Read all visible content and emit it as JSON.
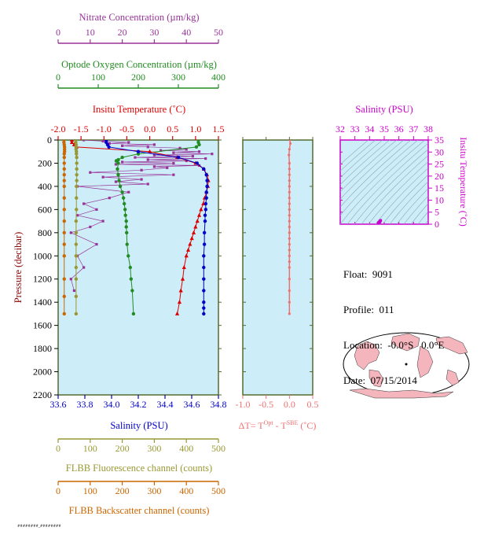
{
  "colors": {
    "nitrate": "#993399",
    "oxygen": "#228b22",
    "temperature": "#dd0000",
    "salinity": "#0000cc",
    "fluorescence": "#999933",
    "backscatter": "#cc6600",
    "delta_t": "#f07070",
    "ts_axis": "#cc00cc",
    "panel_bg": "#cdeef8",
    "frame": "#556b2f"
  },
  "info": {
    "float_label": "Float:",
    "float_value": "9091",
    "profile_label": "Profile:",
    "profile_value": "011",
    "location_label": "Location:",
    "location_value": "-0.0°S   0.0°E",
    "date_label": "Date:",
    "date_value": "07/15/2014"
  },
  "footer_tag": "########_########",
  "chart_data": [
    {
      "type": "line",
      "title": "",
      "ylabel": "Pressure (decibar)",
      "ylim": [
        2200,
        0
      ],
      "y_ticks": [
        0,
        200,
        400,
        600,
        800,
        1000,
        1200,
        1400,
        1600,
        1800,
        2000,
        2200
      ],
      "grid": false,
      "x_axes": [
        {
          "key": "nitrate",
          "label": "Nitrate Concentration (µm/kg)",
          "range": [
            0,
            50
          ],
          "ticks": [
            0,
            10,
            20,
            30,
            40,
            50
          ],
          "position": "top"
        },
        {
          "key": "oxygen",
          "label": "Optode Oxygen Concentration (µm/kg)",
          "range": [
            0,
            400
          ],
          "ticks": [
            0,
            100,
            200,
            300,
            400
          ],
          "position": "top"
        },
        {
          "key": "temperature",
          "label": "Insitu Temperature (˚C)",
          "range": [
            -2.0,
            1.5
          ],
          "ticks": [
            "-2.0",
            "-1.5",
            "-1.0",
            "-0.5",
            "0.0",
            "0.5",
            "1.0",
            "1.5"
          ],
          "position": "top"
        },
        {
          "key": "salinity",
          "label": "Salinity (PSU)",
          "range": [
            33.6,
            34.8
          ],
          "ticks": [
            "33.6",
            "33.8",
            "34.0",
            "34.2",
            "34.4",
            "34.6",
            "34.8"
          ],
          "position": "bottom"
        },
        {
          "key": "fluorescence",
          "label": "FLBB Fluorescence channel (counts)",
          "range": [
            0,
            500
          ],
          "ticks": [
            0,
            100,
            200,
            300,
            400,
            500
          ],
          "position": "bottom"
        },
        {
          "key": "backscatter",
          "label": "FLBB Backscatter channel (counts)",
          "range": [
            0,
            500
          ],
          "ticks": [
            0,
            100,
            200,
            300,
            400,
            500
          ],
          "position": "bottom"
        }
      ],
      "series": [
        {
          "key": "nitrate",
          "marker": "square",
          "x": [
            8,
            14,
            22,
            16,
            30,
            20,
            28,
            38,
            40,
            32,
            44,
            36,
            48,
            30,
            42,
            24,
            46,
            28,
            40,
            20,
            36,
            18,
            44,
            30,
            34,
            26,
            10,
            36,
            14,
            26,
            18,
            28,
            6,
            22,
            16,
            8,
            12,
            6,
            14,
            10,
            4,
            12,
            6,
            8,
            4,
            5
          ],
          "y": [
            0,
            10,
            20,
            30,
            40,
            50,
            60,
            70,
            80,
            90,
            100,
            110,
            120,
            130,
            140,
            150,
            160,
            170,
            180,
            190,
            200,
            210,
            220,
            230,
            240,
            260,
            280,
            300,
            320,
            340,
            360,
            380,
            400,
            450,
            500,
            550,
            600,
            650,
            700,
            750,
            800,
            900,
            1000,
            1100,
            1200,
            1300
          ]
        },
        {
          "key": "oxygen",
          "marker": "circle",
          "x": [
            350,
            350,
            352,
            345,
            200,
            160,
            150,
            145,
            150,
            148,
            150,
            152,
            155,
            160,
            163,
            165,
            167,
            168,
            170,
            170,
            171,
            172,
            175,
            180,
            182,
            185,
            188
          ],
          "y": [
            0,
            20,
            40,
            60,
            120,
            150,
            170,
            180,
            200,
            250,
            300,
            350,
            400,
            450,
            500,
            550,
            600,
            650,
            700,
            750,
            800,
            900,
            1000,
            1100,
            1200,
            1300,
            1500
          ]
        },
        {
          "key": "temperature",
          "marker": "triangle",
          "x": [
            -1.7,
            -1.7,
            -1.65,
            -1.6,
            0.0,
            0.6,
            1.0,
            1.18,
            1.25,
            1.28,
            1.27,
            1.24,
            1.2,
            1.17,
            1.12,
            1.08,
            1.04,
            1.0,
            0.96,
            0.92,
            0.88,
            0.84,
            0.8,
            0.75,
            0.72,
            0.68,
            0.65,
            0.6
          ],
          "y": [
            0,
            20,
            40,
            60,
            100,
            150,
            200,
            250,
            300,
            350,
            400,
            450,
            500,
            550,
            600,
            650,
            700,
            750,
            800,
            850,
            900,
            950,
            1000,
            1100,
            1200,
            1300,
            1400,
            1500
          ]
        },
        {
          "key": "salinity",
          "marker": "circle",
          "x": [
            33.96,
            33.96,
            33.97,
            33.98,
            34.2,
            34.5,
            34.64,
            34.69,
            34.71,
            34.715,
            34.715,
            34.71,
            34.71,
            34.705,
            34.705,
            34.7,
            34.7,
            34.695,
            34.695,
            34.69,
            34.69,
            34.69,
            34.69,
            34.69,
            34.69,
            34.69
          ],
          "y": [
            0,
            20,
            40,
            60,
            100,
            150,
            200,
            250,
            300,
            350,
            400,
            450,
            500,
            550,
            600,
            650,
            700,
            800,
            900,
            1000,
            1100,
            1200,
            1300,
            1400,
            1450,
            1500
          ]
        },
        {
          "key": "fluorescence",
          "marker": "circle",
          "x": [
            55,
            55,
            56,
            56,
            56,
            57,
            57,
            58,
            58,
            58,
            58,
            58,
            57,
            57,
            57,
            56,
            56,
            56,
            56,
            56,
            56,
            56,
            56
          ],
          "y": [
            0,
            20,
            40,
            60,
            80,
            100,
            120,
            150,
            200,
            250,
            300,
            350,
            400,
            500,
            600,
            700,
            800,
            900,
            1000,
            1100,
            1200,
            1350,
            1500
          ]
        },
        {
          "key": "backscatter",
          "marker": "circle",
          "x": [
            18,
            18,
            19,
            20,
            20,
            20,
            19,
            19,
            19,
            19,
            19,
            19,
            19,
            19,
            19,
            19,
            19,
            19,
            19,
            19,
            19,
            19
          ],
          "y": [
            0,
            20,
            40,
            60,
            80,
            100,
            120,
            150,
            200,
            250,
            300,
            350,
            400,
            500,
            600,
            700,
            800,
            900,
            1000,
            1200,
            1350,
            1500
          ]
        }
      ]
    },
    {
      "type": "line",
      "xlabel": "ΔT= T",
      "xlabel_sup1": "Opt",
      "xlabel_mid": " - T",
      "xlabel_sup2": "SBE",
      "xlabel_tail": " (˚C)",
      "xlim": [
        -1.0,
        0.5
      ],
      "x_ticks": [
        "-1.0",
        "-0.5",
        "0.0",
        "0.5"
      ],
      "ylim": [
        2200,
        0
      ],
      "series": [
        {
          "name": "",
          "x": [
            0.01,
            0.02,
            0.0,
            -0.01,
            0.0,
            0.0,
            0.0,
            0.0,
            0.0,
            0.0,
            0.0,
            0.0,
            0.0,
            0.0,
            0.0,
            0.0,
            0.0,
            0.0,
            0.0,
            0.0,
            0.0,
            0.0,
            0.0,
            0.0,
            0.0,
            0.0,
            0.0
          ],
          "y": [
            0,
            30,
            80,
            130,
            200,
            250,
            300,
            350,
            400,
            450,
            500,
            550,
            600,
            650,
            700,
            750,
            800,
            850,
            900,
            950,
            1000,
            1050,
            1100,
            1200,
            1300,
            1400,
            1500
          ]
        }
      ]
    },
    {
      "type": "scatter",
      "title": "Salinity (PSU)",
      "xlabel": "",
      "ylabel": "Insitu Temperature (˚C)",
      "xlim": [
        32,
        38
      ],
      "x_ticks": [
        32,
        33,
        34,
        35,
        36,
        37,
        38
      ],
      "ylim": [
        0,
        35
      ],
      "y_ticks": [
        0,
        5,
        10,
        15,
        20,
        25,
        30,
        35
      ],
      "density_contours": true,
      "series": [
        {
          "name": "",
          "x": [
            34.6,
            34.7,
            34.7,
            34.75,
            34.7
          ],
          "y": [
            0.6,
            1.0,
            1.3,
            1.5,
            0.9
          ]
        }
      ]
    }
  ]
}
